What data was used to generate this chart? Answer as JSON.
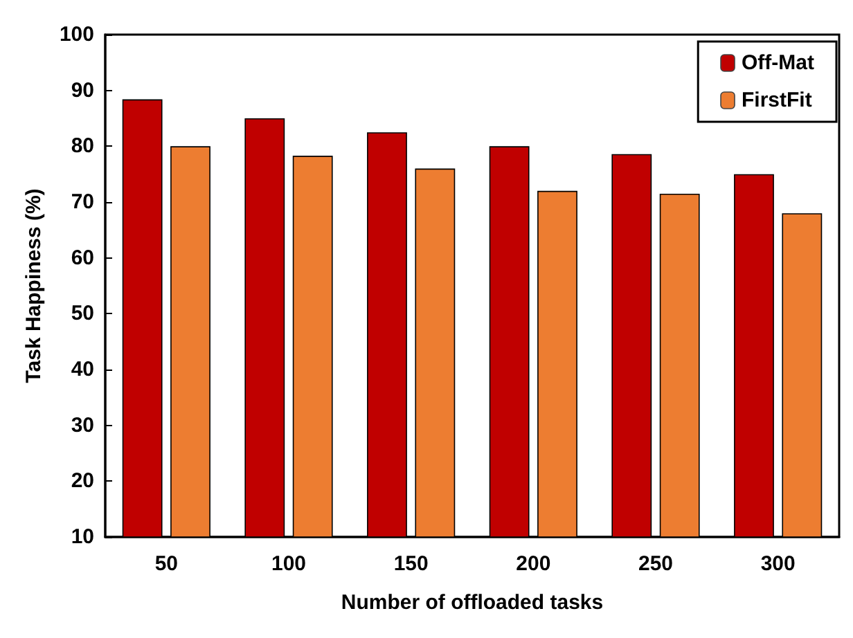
{
  "chart_data": {
    "type": "bar",
    "xlabel": "Number of offloaded tasks",
    "ylabel": "Task Happiness (%)",
    "categories": [
      "50",
      "100",
      "150",
      "200",
      "250",
      "300"
    ],
    "series": [
      {
        "name": "Off-Mat",
        "color": "#c00000",
        "values": [
          88.4,
          85,
          82.5,
          80,
          78.6,
          75
        ]
      },
      {
        "name": "FirstFit",
        "color": "#ed7d31",
        "values": [
          80,
          78.3,
          76,
          72,
          71.5,
          68
        ]
      }
    ],
    "ylim": [
      10,
      100
    ],
    "yticks": [
      10,
      20,
      30,
      40,
      50,
      60,
      70,
      80,
      90,
      100
    ],
    "grid": false,
    "legend": "top right"
  }
}
